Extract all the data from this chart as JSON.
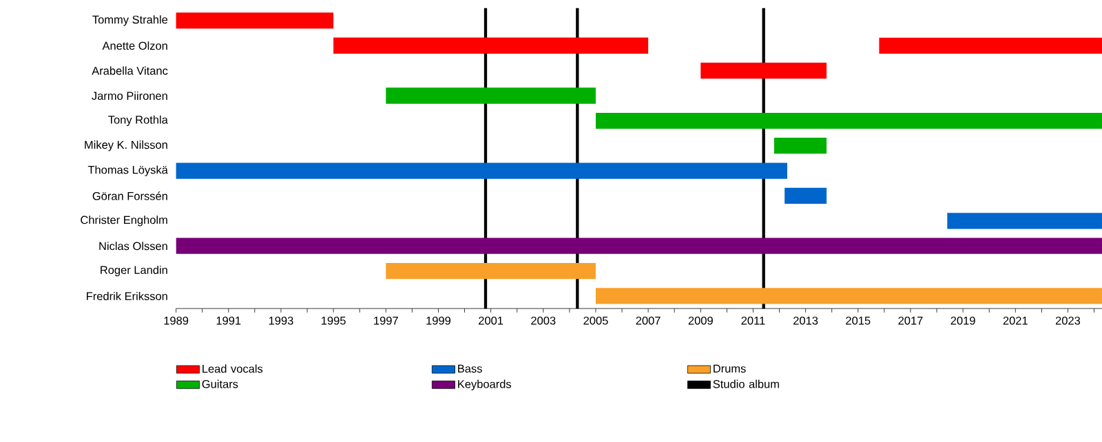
{
  "chart_data": {
    "type": "bar",
    "orientation": "horizontal",
    "legend": "bottom",
    "categories": [
      "Tommy Strahle",
      "Anette Olzon",
      "Arabella Vitanc",
      "Jarmo Piironen",
      "Tony Rothla",
      "Mikey K. Nilsson",
      "Thomas Löyskä",
      "Göran Forssén",
      "Christer Engholm",
      "Niclas Olssen",
      "Roger Landin",
      "Fredrik Eriksson"
    ],
    "series": [
      {
        "name": "Lead vocals",
        "color": "#ff0000",
        "base": [
          1989,
          1995,
          2009,
          null,
          null,
          null,
          null,
          null,
          null,
          null,
          null,
          null
        ],
        "values": [
          6,
          12,
          4.8,
          null,
          null,
          null,
          null,
          null,
          null,
          null,
          null,
          null
        ]
      },
      {
        "color": "#ff0000",
        "base": [
          null,
          2015.8,
          null,
          null,
          null,
          null,
          null,
          null,
          null,
          null,
          null,
          null
        ],
        "values": [
          null,
          8.5,
          null,
          null,
          null,
          null,
          null,
          null,
          null,
          null,
          null,
          null
        ]
      },
      {
        "name": "Guitars",
        "color": "#00b000",
        "base": [
          null,
          null,
          null,
          1997,
          2005,
          2011.8,
          null,
          null,
          null,
          null,
          null,
          null
        ],
        "values": [
          null,
          null,
          null,
          8,
          19.3,
          2,
          null,
          null,
          null,
          null,
          null,
          null
        ]
      },
      {
        "name": "Bass",
        "color": "#0066cc",
        "base": [
          null,
          null,
          null,
          null,
          null,
          null,
          1989,
          2012.2,
          2018.4,
          null,
          null,
          null
        ],
        "values": [
          null,
          null,
          null,
          null,
          null,
          null,
          23.3,
          1.6,
          5.9,
          null,
          null,
          null
        ]
      },
      {
        "name": "Keyboards",
        "color": "#770077",
        "base": [
          null,
          null,
          null,
          null,
          null,
          null,
          null,
          null,
          null,
          1989,
          null,
          null
        ],
        "values": [
          null,
          null,
          null,
          null,
          null,
          null,
          null,
          null,
          null,
          35.3,
          null,
          null
        ]
      },
      {
        "name": "Drums",
        "color": "#f8a02a",
        "base": [
          null,
          null,
          null,
          null,
          null,
          null,
          null,
          null,
          null,
          null,
          1997,
          2005
        ],
        "values": [
          null,
          null,
          null,
          null,
          null,
          null,
          null,
          null,
          null,
          null,
          8,
          19.3
        ]
      }
    ],
    "ref_lines": [
      {
        "axis": "x",
        "value": 2000.8,
        "label": "Studio album",
        "color": "#000000"
      },
      {
        "axis": "x",
        "value": 2004.3,
        "color": "#000000"
      },
      {
        "axis": "x",
        "value": 2011.4,
        "color": "#000000"
      }
    ],
    "xlim": [
      1989,
      2024.3
    ],
    "xticks": [
      1989,
      {
        "value": 1990,
        "label": null
      },
      1991,
      {
        "value": 1992,
        "label": null
      },
      1993,
      {
        "value": 1994,
        "label": null
      },
      1995,
      {
        "value": 1996,
        "label": null
      },
      1997,
      {
        "value": 1998,
        "label": null
      },
      1999,
      {
        "value": 2000,
        "label": null
      },
      2001,
      {
        "value": 2002,
        "label": null
      },
      2003,
      {
        "value": 2004,
        "label": null
      },
      2005,
      {
        "value": 2006,
        "label": null
      },
      2007,
      {
        "value": 2008,
        "label": null
      },
      2009,
      {
        "value": 2010,
        "label": null
      },
      2011,
      {
        "value": 2012,
        "label": null
      },
      2013,
      {
        "value": 2014,
        "label": null
      },
      2015,
      {
        "value": 2016,
        "label": null
      },
      2017,
      {
        "value": 2018,
        "label": null
      },
      2019,
      {
        "value": 2020,
        "label": null
      },
      2021,
      {
        "value": 2022,
        "label": null
      },
      2023,
      {
        "value": 2024,
        "label": null
      }
    ]
  }
}
